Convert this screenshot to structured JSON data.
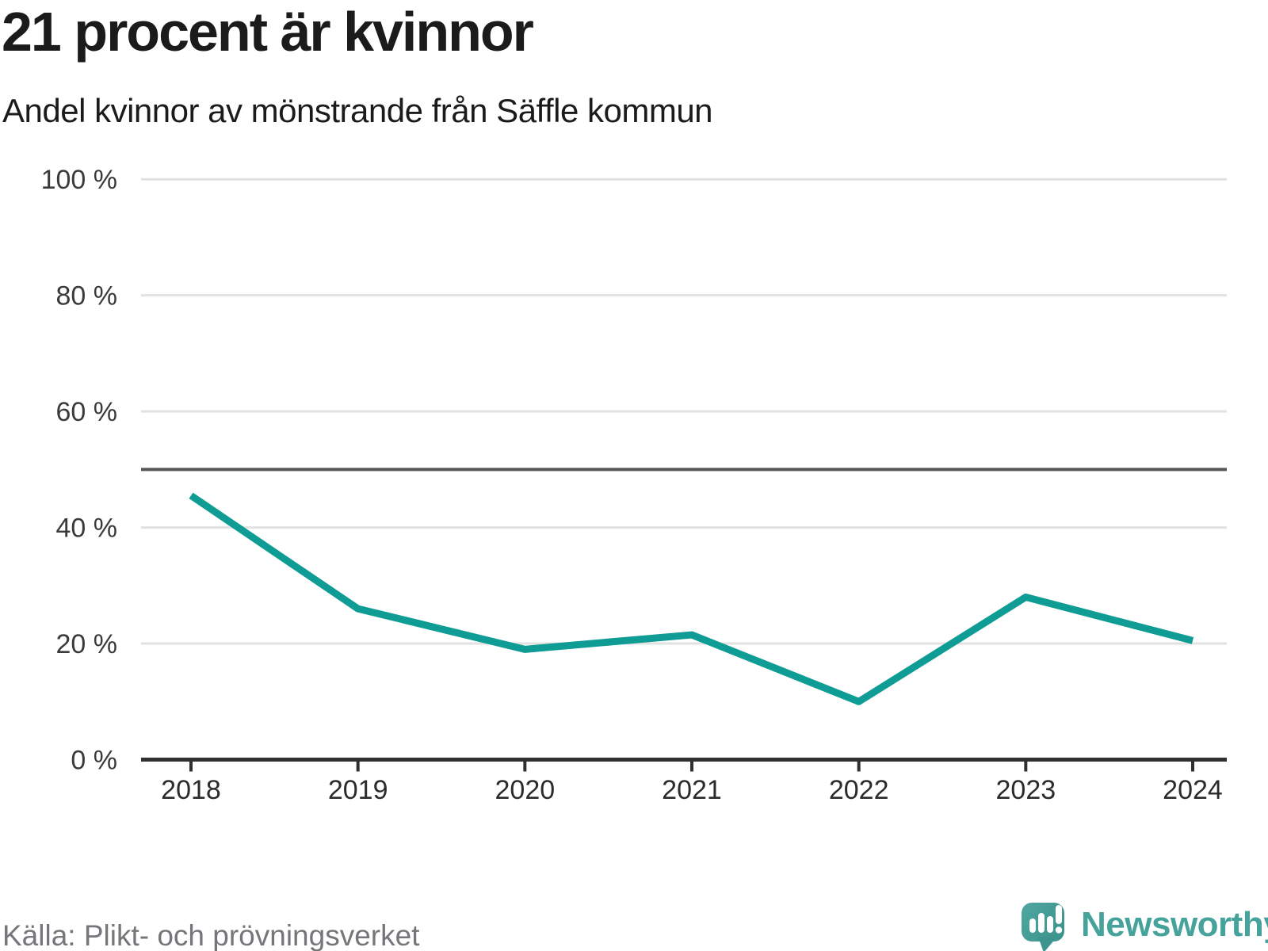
{
  "header": {
    "title": "21 procent är kvinnor",
    "subtitle": "Andel kvinnor av mönstrande från Säffle kommun"
  },
  "chart_data": {
    "type": "line",
    "title": "21 procent är kvinnor",
    "subtitle": "Andel kvinnor av mönstrande från Säffle kommun",
    "categories": [
      "2018",
      "2019",
      "2020",
      "2021",
      "2022",
      "2023",
      "2024"
    ],
    "series": [
      {
        "name": "Andel kvinnor av mönstrande",
        "values": [
          45.5,
          26,
          19,
          21.5,
          10,
          28,
          20.5
        ]
      }
    ],
    "unit": "%",
    "ylim": [
      0,
      100
    ],
    "yticks": [
      0,
      20,
      40,
      60,
      80,
      100
    ],
    "ytick_labels": [
      "0 %",
      "20 %",
      "40 %",
      "60 %",
      "80 %",
      "100 %"
    ],
    "reference_line": 50,
    "grid": "horizontal",
    "legend_position": "none",
    "line_color": "#0E9C94"
  },
  "footer": {
    "source": "Källa: Plikt- och prövningsverket",
    "brand": "Newsworthy",
    "logo_icon": "newsworthy-logo-icon"
  },
  "colors": {
    "accent_teal": "#0E9C94",
    "brand_teal": "#46A39C",
    "logo_bubble": "#4FA7A0",
    "logo_bubble_dark": "#3E948E",
    "logo_glyph": "#FFFFFF",
    "grid_light": "#E2E2E2",
    "reference_dark": "#55565A",
    "axis_dark": "#2F2F31",
    "tick_label": "#2B2B2D",
    "ylabel_color": "#3A3A3C",
    "text_dark": "#1B1B1B",
    "text_gray": "#75767A"
  }
}
